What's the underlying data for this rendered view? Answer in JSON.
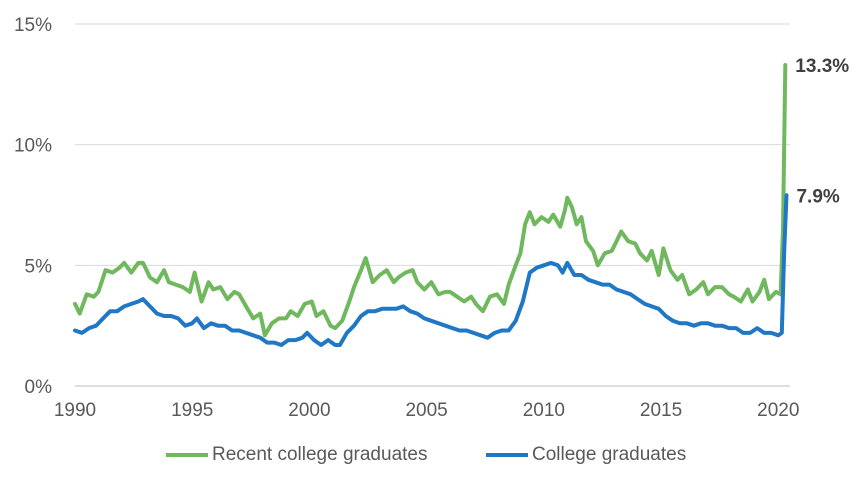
{
  "chart_data": {
    "type": "line",
    "title": "",
    "xlabel": "",
    "ylabel": "",
    "xlim": [
      1990,
      2020.5
    ],
    "ylim": [
      0,
      15
    ],
    "x_ticks": [
      "1990",
      "1995",
      "2000",
      "2005",
      "2010",
      "2015",
      "2020"
    ],
    "y_ticks": [
      "0%",
      "5%",
      "10%",
      "15%"
    ],
    "grid": "horizontal",
    "legend_position": "bottom",
    "series": [
      {
        "name": "Recent college graduates",
        "color": "#70b85d",
        "end_label": "13.3%",
        "points": [
          [
            1990.0,
            3.4
          ],
          [
            1990.2,
            3.0
          ],
          [
            1990.5,
            3.8
          ],
          [
            1990.8,
            3.7
          ],
          [
            1991.0,
            3.9
          ],
          [
            1991.3,
            4.8
          ],
          [
            1991.6,
            4.7
          ],
          [
            1991.9,
            4.9
          ],
          [
            1992.1,
            5.1
          ],
          [
            1992.4,
            4.7
          ],
          [
            1992.7,
            5.1
          ],
          [
            1992.9,
            5.1
          ],
          [
            1993.2,
            4.5
          ],
          [
            1993.5,
            4.3
          ],
          [
            1993.8,
            4.8
          ],
          [
            1994.0,
            4.3
          ],
          [
            1994.3,
            4.2
          ],
          [
            1994.6,
            4.1
          ],
          [
            1994.9,
            3.9
          ],
          [
            1995.1,
            4.7
          ],
          [
            1995.4,
            3.5
          ],
          [
            1995.7,
            4.3
          ],
          [
            1995.9,
            4.0
          ],
          [
            1996.2,
            4.1
          ],
          [
            1996.5,
            3.6
          ],
          [
            1996.8,
            3.9
          ],
          [
            1997.0,
            3.8
          ],
          [
            1997.3,
            3.3
          ],
          [
            1997.6,
            2.8
          ],
          [
            1997.9,
            3.0
          ],
          [
            1998.1,
            2.1
          ],
          [
            1998.4,
            2.6
          ],
          [
            1998.7,
            2.8
          ],
          [
            1999.0,
            2.8
          ],
          [
            1999.2,
            3.1
          ],
          [
            1999.5,
            2.9
          ],
          [
            1999.8,
            3.4
          ],
          [
            2000.1,
            3.5
          ],
          [
            2000.3,
            2.9
          ],
          [
            2000.6,
            3.1
          ],
          [
            2000.9,
            2.5
          ],
          [
            2001.1,
            2.4
          ],
          [
            2001.4,
            2.7
          ],
          [
            2001.7,
            3.5
          ],
          [
            2001.9,
            4.1
          ],
          [
            2002.2,
            4.8
          ],
          [
            2002.4,
            5.3
          ],
          [
            2002.7,
            4.3
          ],
          [
            2003.0,
            4.6
          ],
          [
            2003.3,
            4.8
          ],
          [
            2003.6,
            4.3
          ],
          [
            2003.8,
            4.5
          ],
          [
            2004.1,
            4.7
          ],
          [
            2004.4,
            4.8
          ],
          [
            2004.6,
            4.3
          ],
          [
            2004.9,
            4.0
          ],
          [
            2005.2,
            4.3
          ],
          [
            2005.5,
            3.8
          ],
          [
            2005.8,
            3.9
          ],
          [
            2006.0,
            3.9
          ],
          [
            2006.3,
            3.7
          ],
          [
            2006.6,
            3.5
          ],
          [
            2006.9,
            3.7
          ],
          [
            2007.1,
            3.4
          ],
          [
            2007.4,
            3.1
          ],
          [
            2007.7,
            3.7
          ],
          [
            2008.0,
            3.8
          ],
          [
            2008.3,
            3.4
          ],
          [
            2008.5,
            4.2
          ],
          [
            2008.8,
            5.0
          ],
          [
            2009.0,
            5.5
          ],
          [
            2009.2,
            6.7
          ],
          [
            2009.4,
            7.2
          ],
          [
            2009.6,
            6.7
          ],
          [
            2009.9,
            7.0
          ],
          [
            2010.2,
            6.8
          ],
          [
            2010.4,
            7.1
          ],
          [
            2010.7,
            6.6
          ],
          [
            2010.9,
            7.3
          ],
          [
            2011.0,
            7.8
          ],
          [
            2011.2,
            7.4
          ],
          [
            2011.4,
            6.7
          ],
          [
            2011.6,
            7.0
          ],
          [
            2011.8,
            6.0
          ],
          [
            2012.1,
            5.6
          ],
          [
            2012.3,
            5.0
          ],
          [
            2012.6,
            5.5
          ],
          [
            2012.9,
            5.6
          ],
          [
            2013.1,
            6.0
          ],
          [
            2013.3,
            6.4
          ],
          [
            2013.6,
            6.0
          ],
          [
            2013.9,
            5.9
          ],
          [
            2014.1,
            5.5
          ],
          [
            2014.4,
            5.2
          ],
          [
            2014.6,
            5.6
          ],
          [
            2014.9,
            4.6
          ],
          [
            2015.1,
            5.7
          ],
          [
            2015.4,
            4.8
          ],
          [
            2015.7,
            4.4
          ],
          [
            2015.9,
            4.6
          ],
          [
            2016.2,
            3.8
          ],
          [
            2016.5,
            4.0
          ],
          [
            2016.8,
            4.3
          ],
          [
            2017.0,
            3.8
          ],
          [
            2017.3,
            4.1
          ],
          [
            2017.6,
            4.1
          ],
          [
            2017.9,
            3.8
          ],
          [
            2018.1,
            3.7
          ],
          [
            2018.4,
            3.5
          ],
          [
            2018.7,
            4.0
          ],
          [
            2018.9,
            3.5
          ],
          [
            2019.2,
            3.9
          ],
          [
            2019.4,
            4.4
          ],
          [
            2019.6,
            3.6
          ],
          [
            2019.9,
            3.9
          ],
          [
            2020.1,
            3.8
          ],
          [
            2020.2,
            6.5
          ],
          [
            2020.3,
            13.3
          ]
        ]
      },
      {
        "name": "College graduates",
        "color": "#1f77c6",
        "end_label": "7.9%",
        "points": [
          [
            1990.0,
            2.3
          ],
          [
            1990.3,
            2.2
          ],
          [
            1990.6,
            2.4
          ],
          [
            1990.9,
            2.5
          ],
          [
            1991.2,
            2.8
          ],
          [
            1991.5,
            3.1
          ],
          [
            1991.8,
            3.1
          ],
          [
            1992.1,
            3.3
          ],
          [
            1992.4,
            3.4
          ],
          [
            1992.7,
            3.5
          ],
          [
            1992.9,
            3.6
          ],
          [
            1993.2,
            3.3
          ],
          [
            1993.5,
            3.0
          ],
          [
            1993.8,
            2.9
          ],
          [
            1994.1,
            2.9
          ],
          [
            1994.4,
            2.8
          ],
          [
            1994.7,
            2.5
          ],
          [
            1995.0,
            2.6
          ],
          [
            1995.2,
            2.8
          ],
          [
            1995.5,
            2.4
          ],
          [
            1995.8,
            2.6
          ],
          [
            1996.1,
            2.5
          ],
          [
            1996.4,
            2.5
          ],
          [
            1996.7,
            2.3
          ],
          [
            1997.0,
            2.3
          ],
          [
            1997.3,
            2.2
          ],
          [
            1997.6,
            2.1
          ],
          [
            1997.9,
            2.0
          ],
          [
            1998.2,
            1.8
          ],
          [
            1998.5,
            1.8
          ],
          [
            1998.8,
            1.7
          ],
          [
            1999.1,
            1.9
          ],
          [
            1999.4,
            1.9
          ],
          [
            1999.7,
            2.0
          ],
          [
            1999.9,
            2.2
          ],
          [
            2000.2,
            1.9
          ],
          [
            2000.5,
            1.7
          ],
          [
            2000.8,
            1.9
          ],
          [
            2001.1,
            1.7
          ],
          [
            2001.3,
            1.7
          ],
          [
            2001.6,
            2.2
          ],
          [
            2001.9,
            2.5
          ],
          [
            2002.2,
            2.9
          ],
          [
            2002.5,
            3.1
          ],
          [
            2002.8,
            3.1
          ],
          [
            2003.1,
            3.2
          ],
          [
            2003.4,
            3.2
          ],
          [
            2003.7,
            3.2
          ],
          [
            2004.0,
            3.3
          ],
          [
            2004.3,
            3.1
          ],
          [
            2004.6,
            3.0
          ],
          [
            2004.9,
            2.8
          ],
          [
            2005.2,
            2.7
          ],
          [
            2005.5,
            2.6
          ],
          [
            2005.8,
            2.5
          ],
          [
            2006.1,
            2.4
          ],
          [
            2006.4,
            2.3
          ],
          [
            2006.7,
            2.3
          ],
          [
            2007.0,
            2.2
          ],
          [
            2007.3,
            2.1
          ],
          [
            2007.6,
            2.0
          ],
          [
            2007.9,
            2.2
          ],
          [
            2008.2,
            2.3
          ],
          [
            2008.5,
            2.3
          ],
          [
            2008.8,
            2.7
          ],
          [
            2009.1,
            3.5
          ],
          [
            2009.4,
            4.7
          ],
          [
            2009.7,
            4.9
          ],
          [
            2010.0,
            5.0
          ],
          [
            2010.3,
            5.1
          ],
          [
            2010.6,
            5.0
          ],
          [
            2010.8,
            4.7
          ],
          [
            2011.0,
            5.1
          ],
          [
            2011.3,
            4.6
          ],
          [
            2011.6,
            4.6
          ],
          [
            2011.9,
            4.4
          ],
          [
            2012.2,
            4.3
          ],
          [
            2012.5,
            4.2
          ],
          [
            2012.8,
            4.2
          ],
          [
            2013.1,
            4.0
          ],
          [
            2013.4,
            3.9
          ],
          [
            2013.7,
            3.8
          ],
          [
            2014.0,
            3.6
          ],
          [
            2014.3,
            3.4
          ],
          [
            2014.6,
            3.3
          ],
          [
            2014.9,
            3.2
          ],
          [
            2015.2,
            2.9
          ],
          [
            2015.5,
            2.7
          ],
          [
            2015.8,
            2.6
          ],
          [
            2016.1,
            2.6
          ],
          [
            2016.4,
            2.5
          ],
          [
            2016.7,
            2.6
          ],
          [
            2017.0,
            2.6
          ],
          [
            2017.3,
            2.5
          ],
          [
            2017.6,
            2.5
          ],
          [
            2017.9,
            2.4
          ],
          [
            2018.2,
            2.4
          ],
          [
            2018.5,
            2.2
          ],
          [
            2018.8,
            2.2
          ],
          [
            2019.1,
            2.4
          ],
          [
            2019.4,
            2.2
          ],
          [
            2019.7,
            2.2
          ],
          [
            2020.0,
            2.1
          ],
          [
            2020.15,
            2.2
          ],
          [
            2020.25,
            5.5
          ],
          [
            2020.35,
            7.9
          ]
        ]
      }
    ]
  }
}
